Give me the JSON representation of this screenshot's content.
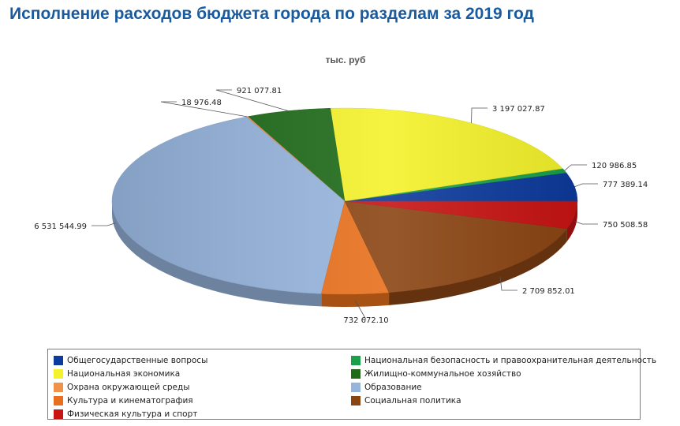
{
  "title": "Исполнение расходов бюджета города по разделам за 2019 год",
  "chart_data": {
    "type": "pie",
    "subtitle": "тыс. руб",
    "series": [
      {
        "name": "Общегосударственные вопросы",
        "value": 777389.14,
        "label": "777 389.14",
        "color": "#0d3a9c"
      },
      {
        "name": "Национальная безопасность и правоохранительная деятельность",
        "value": 120986.85,
        "label": "120 986.85",
        "color": "#1aa04a"
      },
      {
        "name": "Национальная экономика",
        "value": 3197027.87,
        "label": "3 197 027.87",
        "color": "#f4f22a"
      },
      {
        "name": "Жилищно-коммунальное хозяйство",
        "value": 921077.81,
        "label": "921 077.81",
        "color": "#1f6b1a"
      },
      {
        "name": "Охрана окружающей среды",
        "value": 18976.48,
        "label": "18 976.48",
        "color": "#f0924a"
      },
      {
        "name": "Образование",
        "value": 6531544.99,
        "label": "6 531 544.99",
        "color": "#96b5dd"
      },
      {
        "name": "Культура и кинематография",
        "value": 732672.1,
        "label": "732 672.10",
        "color": "#e8701c"
      },
      {
        "name": "Социальная политика",
        "value": 2709852.01,
        "label": "2 709 852.01",
        "color": "#8b4513"
      },
      {
        "name": "Физическая культура и спорт",
        "value": 750508.58,
        "label": "750 508.58",
        "color": "#c81414"
      }
    ],
    "legend": {
      "position": "bottom",
      "items": [
        "Общегосударственные вопросы",
        "Национальная безопасность и правоохранительная деятельность",
        "Национальная экономика",
        "Жилищно-коммунальное хозяйство",
        "Охрана окружающей среды",
        "Образование",
        "Культура и кинематография",
        "Социальная политика",
        "Физическая культура и спорт"
      ]
    }
  }
}
